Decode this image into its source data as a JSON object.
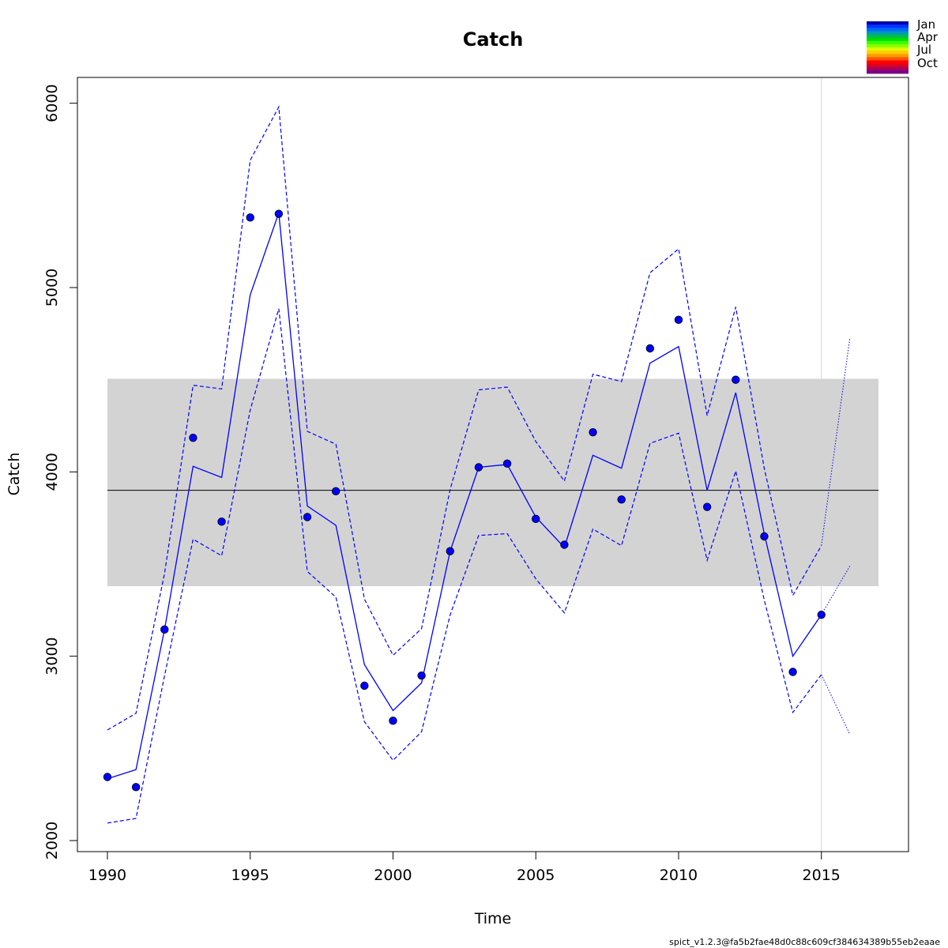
{
  "chart_data": {
    "type": "line",
    "title": "Catch",
    "xlabel": "Time",
    "ylabel": "Catch",
    "xlim": [
      1988.95,
      2018.05
    ],
    "ylim": [
      1940,
      6140
    ],
    "x_ticks": [
      1990,
      1995,
      2000,
      2005,
      2010,
      2015
    ],
    "x_tick_labels": [
      "1990",
      "1995",
      "2000",
      "2005",
      "2010",
      "2015"
    ],
    "y_ticks": [
      2000,
      3000,
      4000,
      5000,
      6000
    ],
    "y_tick_labels": [
      "2000",
      "3000",
      "4000",
      "5000",
      "6000"
    ],
    "band": {
      "x_start": 1990,
      "x_end": 2017,
      "y_low": 3380,
      "y_high": 4505,
      "color": "#d3d3d3"
    },
    "hline": {
      "y": 3900,
      "x_start": 1990,
      "x_end": 2017,
      "color": "#000000"
    },
    "vline": {
      "x": 2015,
      "color": "#d3d3d3"
    },
    "series": [
      {
        "kind": "observed_points",
        "color": "#0000ff",
        "x": [
          1990,
          1991,
          1992,
          1993,
          1994,
          1995,
          1996,
          1997,
          1998,
          1999,
          2000,
          2001,
          2002,
          2003,
          2004,
          2005,
          2006,
          2007,
          2008,
          2009,
          2010,
          2011,
          2012,
          2013,
          2014,
          2015
        ],
        "y": [
          2345,
          2290,
          3145,
          4185,
          3730,
          5380,
          5400,
          3755,
          3895,
          2840,
          2650,
          2895,
          3570,
          4025,
          4045,
          3745,
          3605,
          4215,
          3850,
          4670,
          4825,
          3810,
          4500,
          3650,
          2915,
          3225
        ]
      },
      {
        "kind": "estimate_line",
        "color": "#0000ff",
        "x": [
          1990,
          1991,
          1992,
          1993,
          1994,
          1995,
          1996,
          1997,
          1998,
          1999,
          2000,
          2001,
          2002,
          2003,
          2004,
          2005,
          2006,
          2007,
          2008,
          2009,
          2010,
          2011,
          2012,
          2013,
          2014,
          2015
        ],
        "y": [
          2335,
          2385,
          3145,
          4030,
          3970,
          4960,
          5405,
          3815,
          3710,
          2955,
          2705,
          2855,
          3570,
          4025,
          4040,
          3755,
          3590,
          4090,
          4020,
          4590,
          4680,
          3900,
          4430,
          3665,
          3000,
          3225
        ]
      },
      {
        "kind": "ci_upper",
        "color": "#0000ff",
        "x": [
          1990,
          1991,
          1992,
          1993,
          1994,
          1995,
          1996,
          1997,
          1998,
          1999,
          2000,
          2001,
          2002,
          2003,
          2004,
          2005,
          2006,
          2007,
          2008,
          2009,
          2010,
          2011,
          2012,
          2013,
          2014,
          2015
        ],
        "y": [
          2600,
          2690,
          3450,
          4470,
          4450,
          5690,
          5980,
          4220,
          4150,
          3310,
          3005,
          3150,
          3905,
          4445,
          4460,
          4165,
          3950,
          4530,
          4490,
          5080,
          5210,
          4305,
          4895,
          4020,
          3330,
          3600
        ]
      },
      {
        "kind": "ci_lower",
        "color": "#0000ff",
        "x": [
          1990,
          1991,
          1992,
          1993,
          1994,
          1995,
          1996,
          1997,
          1998,
          1999,
          2000,
          2001,
          2002,
          2003,
          2004,
          2005,
          2006,
          2007,
          2008,
          2009,
          2010,
          2011,
          2012,
          2013,
          2014,
          2015
        ],
        "y": [
          2095,
          2120,
          2895,
          3635,
          3545,
          4335,
          4885,
          3460,
          3320,
          2645,
          2435,
          2590,
          3225,
          3655,
          3665,
          3420,
          3235,
          3690,
          3600,
          4155,
          4210,
          3520,
          4005,
          3305,
          2695,
          2900
        ]
      },
      {
        "kind": "prediction",
        "color": "#0000ff",
        "x": [
          2015,
          2016
        ],
        "y": [
          3225,
          3490
        ],
        "upper": [
          3600,
          4730
        ],
        "lower": [
          2900,
          2575
        ]
      }
    ],
    "legend": {
      "placement": "top-right",
      "labels": [
        "Jan",
        "Apr",
        "Jul",
        "Oct"
      ],
      "colors": [
        "#0000aa",
        "#0033ff",
        "#0066ff",
        "#0099bb",
        "#00bb55",
        "#00dd00",
        "#33ff00",
        "#88ff00",
        "#ddff00",
        "#ffcc00",
        "#ff9900",
        "#ff5500",
        "#ff0000",
        "#dd0022",
        "#aa0055",
        "#7a0088"
      ]
    },
    "footnote": "spict_v1.2.3@fa5b2fae48d0c88c609cf384634389b55eb2eaae"
  }
}
